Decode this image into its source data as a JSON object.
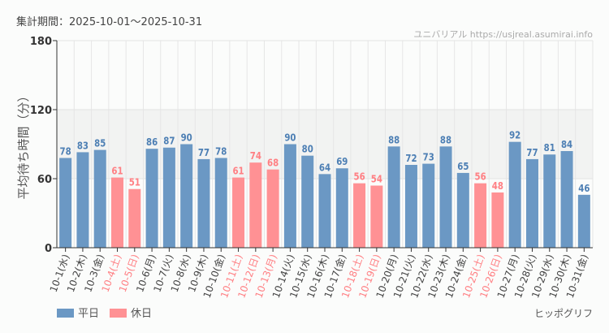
{
  "header": {
    "period": "集計期間：2025-10-01～2025-10-31",
    "credit": "ユニバリアル  https://usjreal.asumirai.info"
  },
  "footer": {
    "brand": "ヒッポグリフ"
  },
  "colors": {
    "weekday": "#6b98c4",
    "holiday": "#ff9194",
    "weekday_label": "#4d7fb4",
    "holiday_label": "#ff7f83"
  },
  "chart_data": {
    "type": "bar",
    "title": "",
    "ylabel": "平均待ち時間（分）",
    "xlabel": "",
    "ylim": [
      0,
      180
    ],
    "yticks": [
      0,
      60,
      120,
      180
    ],
    "shaded_band": [
      60,
      120
    ],
    "grid": true,
    "legend": {
      "position": "bottom-left",
      "entries": [
        {
          "name": "平日",
          "key": "weekday"
        },
        {
          "name": "休日",
          "key": "holiday"
        }
      ]
    },
    "categories": [
      "10-1(水)",
      "10-2(木)",
      "10-3(金)",
      "10-4(土)",
      "10-5(日)",
      "10-6(月)",
      "10-7(火)",
      "10-8(水)",
      "10-9(木)",
      "10-10(金)",
      "10-11(土)",
      "10-12(日)",
      "10-13(月)",
      "10-14(火)",
      "10-15(水)",
      "10-16(木)",
      "10-17(金)",
      "10-18(土)",
      "10-19(日)",
      "10-20(月)",
      "10-21(火)",
      "10-22(水)",
      "10-23(木)",
      "10-24(金)",
      "10-25(土)",
      "10-26(日)",
      "10-27(月)",
      "10-28(火)",
      "10-29(水)",
      "10-30(木)",
      "10-31(金)"
    ],
    "values": [
      78,
      83,
      85,
      61,
      51,
      86,
      87,
      90,
      77,
      78,
      61,
      74,
      68,
      90,
      80,
      64,
      69,
      56,
      54,
      88,
      72,
      73,
      88,
      65,
      56,
      48,
      92,
      77,
      81,
      84,
      46
    ],
    "holiday": [
      false,
      false,
      false,
      true,
      true,
      false,
      false,
      false,
      false,
      false,
      true,
      true,
      true,
      false,
      false,
      false,
      false,
      true,
      true,
      false,
      false,
      false,
      false,
      false,
      true,
      true,
      false,
      false,
      false,
      false,
      false
    ]
  }
}
